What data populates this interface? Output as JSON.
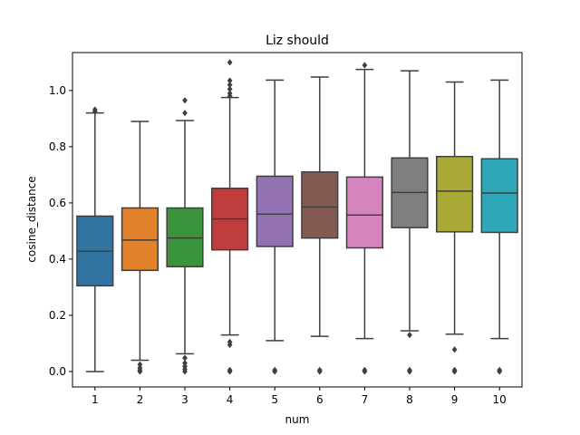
{
  "chart_data": {
    "type": "box",
    "title": "Liz should",
    "xlabel": "num",
    "ylabel": "cosine_distance",
    "ylim": [
      -0.055,
      1.135
    ],
    "yticks": [
      "0.0",
      "0.2",
      "0.4",
      "0.6",
      "0.8",
      "1.0"
    ],
    "grid": false,
    "legend": "none",
    "categories": [
      "1",
      "2",
      "3",
      "4",
      "5",
      "6",
      "7",
      "8",
      "9",
      "10"
    ],
    "boxes": [
      {
        "category": "1",
        "color": "#3274a1",
        "whisker_low": 0.0,
        "q1": 0.305,
        "median": 0.428,
        "q3": 0.553,
        "whisker_high": 0.92,
        "outliers": [
          0.925,
          0.932
        ]
      },
      {
        "category": "2",
        "color": "#e1812c",
        "whisker_low": 0.04,
        "q1": 0.36,
        "median": 0.468,
        "q3": 0.582,
        "whisker_high": 0.89,
        "outliers": [
          0.0,
          0.005,
          0.013,
          0.025
        ]
      },
      {
        "category": "3",
        "color": "#3a923a",
        "whisker_low": 0.063,
        "q1": 0.373,
        "median": 0.475,
        "q3": 0.582,
        "whisker_high": 0.893,
        "outliers": [
          0.0,
          0.008,
          0.018,
          0.03,
          0.048,
          0.92,
          0.965
        ]
      },
      {
        "category": "4",
        "color": "#c03d3e",
        "whisker_low": 0.13,
        "q1": 0.433,
        "median": 0.543,
        "q3": 0.652,
        "whisker_high": 0.975,
        "outliers": [
          0.0,
          0.005,
          0.095,
          0.105,
          0.98,
          0.99,
          1.005,
          1.02,
          1.035,
          1.1
        ]
      },
      {
        "category": "5",
        "color": "#9372b2",
        "whisker_low": 0.11,
        "q1": 0.445,
        "median": 0.56,
        "q3": 0.695,
        "whisker_high": 1.037,
        "outliers": [
          0.0,
          0.005
        ]
      },
      {
        "category": "6",
        "color": "#845b53",
        "whisker_low": 0.125,
        "q1": 0.475,
        "median": 0.585,
        "q3": 0.71,
        "whisker_high": 1.048,
        "outliers": [
          0.0,
          0.005
        ]
      },
      {
        "category": "7",
        "color": "#d684bd",
        "whisker_low": 0.117,
        "q1": 0.44,
        "median": 0.557,
        "q3": 0.692,
        "whisker_high": 1.075,
        "outliers": [
          0.0,
          0.005,
          1.09
        ]
      },
      {
        "category": "8",
        "color": "#7f7f7f",
        "whisker_low": 0.145,
        "q1": 0.512,
        "median": 0.637,
        "q3": 0.76,
        "whisker_high": 1.07,
        "outliers": [
          0.0,
          0.005,
          0.13
        ]
      },
      {
        "category": "9",
        "color": "#a9aa35",
        "whisker_low": 0.133,
        "q1": 0.497,
        "median": 0.642,
        "q3": 0.765,
        "whisker_high": 1.03,
        "outliers": [
          0.0,
          0.005,
          0.078
        ]
      },
      {
        "category": "10",
        "color": "#2ea8b8",
        "whisker_low": 0.117,
        "q1": 0.495,
        "median": 0.635,
        "q3": 0.757,
        "whisker_high": 1.037,
        "outliers": [
          0.0,
          0.005
        ]
      }
    ]
  }
}
